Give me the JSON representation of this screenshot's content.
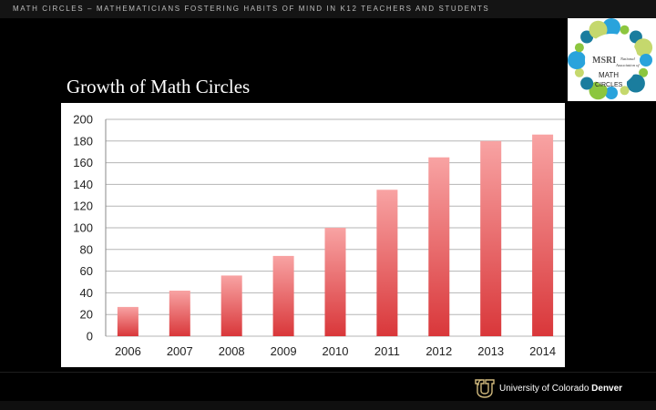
{
  "header": {
    "tagline": "MATH CIRCLES – MATHEMATICIANS FOSTERING HABITS OF MIND IN K12 TEACHERS AND STUDENTS"
  },
  "logo": {
    "line1": "MSRI",
    "line2": "National",
    "line3": "Association of",
    "line4": "MATH",
    "line5": "CIRCLES",
    "colors": [
      "#29a3dc",
      "#8cc63f",
      "#1a7d9e",
      "#c5d86d"
    ]
  },
  "slide": {
    "title": "Growth of Math Circles"
  },
  "chart_data": {
    "type": "bar",
    "categories": [
      "2006",
      "2007",
      "2008",
      "2009",
      "2010",
      "2011",
      "2012",
      "2013",
      "2014"
    ],
    "values": [
      27,
      42,
      56,
      74,
      100,
      135,
      165,
      180,
      186
    ],
    "title": "",
    "xlabel": "",
    "ylabel": "",
    "ylim": [
      0,
      200
    ],
    "yticks": [
      0,
      20,
      40,
      60,
      80,
      100,
      120,
      140,
      160,
      180,
      200
    ],
    "grid": true,
    "bar_color_top": "#f8a3a3",
    "bar_color_bottom": "#d9373a"
  },
  "footer": {
    "university_prefix": "University of Colorado ",
    "university_suffix": "Denver"
  }
}
